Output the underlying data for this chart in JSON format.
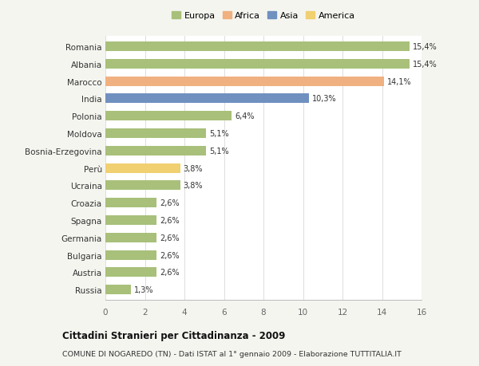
{
  "countries": [
    "Russia",
    "Austria",
    "Bulgaria",
    "Germania",
    "Spagna",
    "Croazia",
    "Ucraina",
    "Perù",
    "Bosnia-Erzegovina",
    "Moldova",
    "Polonia",
    "India",
    "Marocco",
    "Albania",
    "Romania"
  ],
  "values": [
    1.3,
    2.6,
    2.6,
    2.6,
    2.6,
    2.6,
    3.8,
    3.8,
    5.1,
    5.1,
    6.4,
    10.3,
    14.1,
    15.4,
    15.4
  ],
  "labels": [
    "1,3%",
    "2,6%",
    "2,6%",
    "2,6%",
    "2,6%",
    "2,6%",
    "3,8%",
    "3,8%",
    "5,1%",
    "5,1%",
    "6,4%",
    "10,3%",
    "14,1%",
    "15,4%",
    "15,4%"
  ],
  "colors": [
    "#a8c07a",
    "#a8c07a",
    "#a8c07a",
    "#a8c07a",
    "#a8c07a",
    "#a8c07a",
    "#a8c07a",
    "#f0d070",
    "#a8c07a",
    "#a8c07a",
    "#a8c07a",
    "#7090c0",
    "#f0b080",
    "#a8c07a",
    "#a8c07a"
  ],
  "legend_labels": [
    "Europa",
    "Africa",
    "Asia",
    "America"
  ],
  "legend_colors": [
    "#a8c07a",
    "#f0b080",
    "#7090c0",
    "#f0d070"
  ],
  "title_bold": "Cittadini Stranieri per Cittadinanza - 2009",
  "subtitle": "COMUNE DI NOGAREDO (TN) - Dati ISTAT al 1° gennaio 2009 - Elaborazione TUTTITALIA.IT",
  "xlim": [
    0,
    16
  ],
  "xticks": [
    0,
    2,
    4,
    6,
    8,
    10,
    12,
    14,
    16
  ],
  "background_color": "#f5f5f0",
  "bar_bg": "#ffffff",
  "grid_color": "#dddddd"
}
